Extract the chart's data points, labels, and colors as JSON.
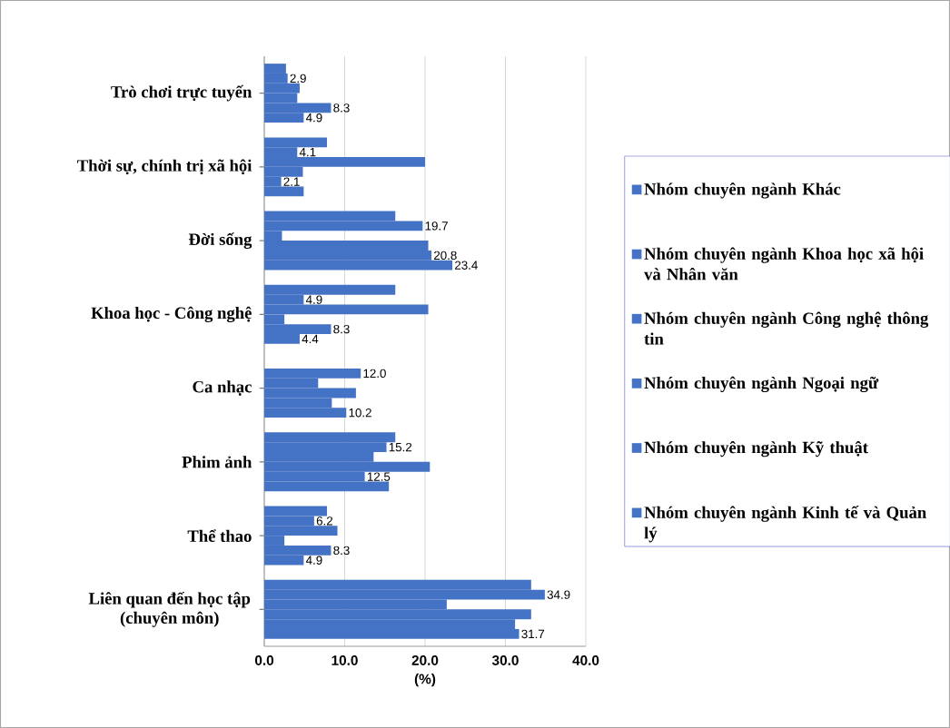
{
  "chart_data": {
    "type": "bar",
    "orientation": "horizontal",
    "xlabel": "(%)",
    "categories": [
      "Trò chơi trực tuyến",
      "Thời sự, chính trị xã hội",
      "Đời sống",
      "Khoa học - Công nghệ",
      "Ca nhạc",
      "Phim ảnh",
      "Thể thao",
      "Liên quan đến học tập (chuyên môn)"
    ],
    "series": [
      {
        "name": "Nhóm chuyên ngành Khác",
        "color": "#4472c4",
        "values": [
          2.7,
          7.8,
          16.3,
          16.3,
          null,
          16.3,
          7.8,
          33.2
        ]
      },
      {
        "name": "Nhóm chuyên ngành Khoa học xã hội và Nhân văn",
        "color": "#4472c4",
        "values": [
          2.9,
          4.1,
          19.7,
          4.9,
          12.0,
          15.2,
          6.2,
          34.9
        ],
        "value_labels": [
          "2.9",
          "4.1",
          "19.7",
          "4.9",
          "12.0",
          "15.2",
          "6.2",
          "34.9"
        ]
      },
      {
        "name": "Nhóm chuyên ngành Công nghệ thông tin",
        "color": "#4472c4",
        "values": [
          4.4,
          20.0,
          2.2,
          20.4,
          6.7,
          13.6,
          9.1,
          22.7
        ]
      },
      {
        "name": "Nhóm chuyên ngành Ngoại ngữ",
        "color": "#4472c4",
        "values": [
          4.1,
          4.8,
          20.4,
          2.5,
          11.4,
          20.6,
          2.5,
          33.2
        ]
      },
      {
        "name": "Nhóm chuyên ngành Kỹ thuật",
        "color": "#4472c4",
        "values": [
          8.3,
          2.1,
          20.8,
          8.3,
          8.4,
          12.5,
          8.3,
          31.2
        ],
        "value_labels": [
          "8.3",
          "2.1",
          "20.8",
          "8.3",
          null,
          "12.5",
          "8.3",
          null
        ]
      },
      {
        "name": "Nhóm chuyên ngành Kinh tế và Quản lý",
        "color": "#4472c4",
        "values": [
          4.9,
          4.9,
          23.4,
          4.4,
          10.2,
          15.5,
          4.9,
          31.7
        ],
        "value_labels": [
          "4.9",
          null,
          "23.4",
          "4.4",
          "10.2",
          null,
          "4.9",
          "31.7"
        ]
      }
    ],
    "xlim": [
      0,
      40
    ],
    "xticks": [
      {
        "value": 0,
        "label": "0.0"
      },
      {
        "value": 10,
        "label": "10.0"
      },
      {
        "value": 20,
        "label": "20.0"
      },
      {
        "value": 30,
        "label": "30.0"
      },
      {
        "value": 40,
        "label": "40.0"
      }
    ],
    "grid": "x",
    "legend": "right"
  }
}
